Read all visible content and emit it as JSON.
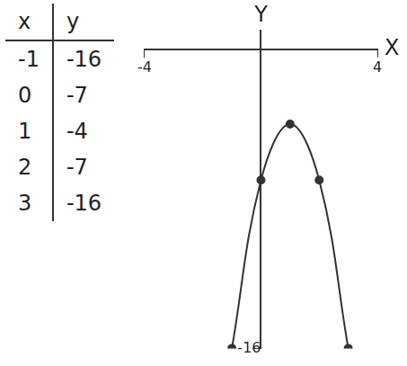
{
  "table": {
    "columns": [
      "x",
      "y"
    ],
    "rows": [
      [
        -1,
        -16
      ],
      [
        0,
        -7
      ],
      [
        1,
        -4
      ],
      [
        2,
        -7
      ],
      [
        3,
        -16
      ]
    ]
  },
  "chart_data": {
    "type": "line",
    "x_label": "X",
    "y_label": "Y",
    "x": [
      -1,
      0,
      1,
      2,
      3
    ],
    "values": [
      -16,
      -7,
      -4,
      -7,
      -16
    ],
    "color": "#333333",
    "marker": "circle",
    "xlim": [
      -4,
      4
    ],
    "xticks": [
      -4,
      4
    ],
    "ylim": [
      -16,
      1
    ],
    "yticks": [
      -16
    ],
    "grid": false
  }
}
